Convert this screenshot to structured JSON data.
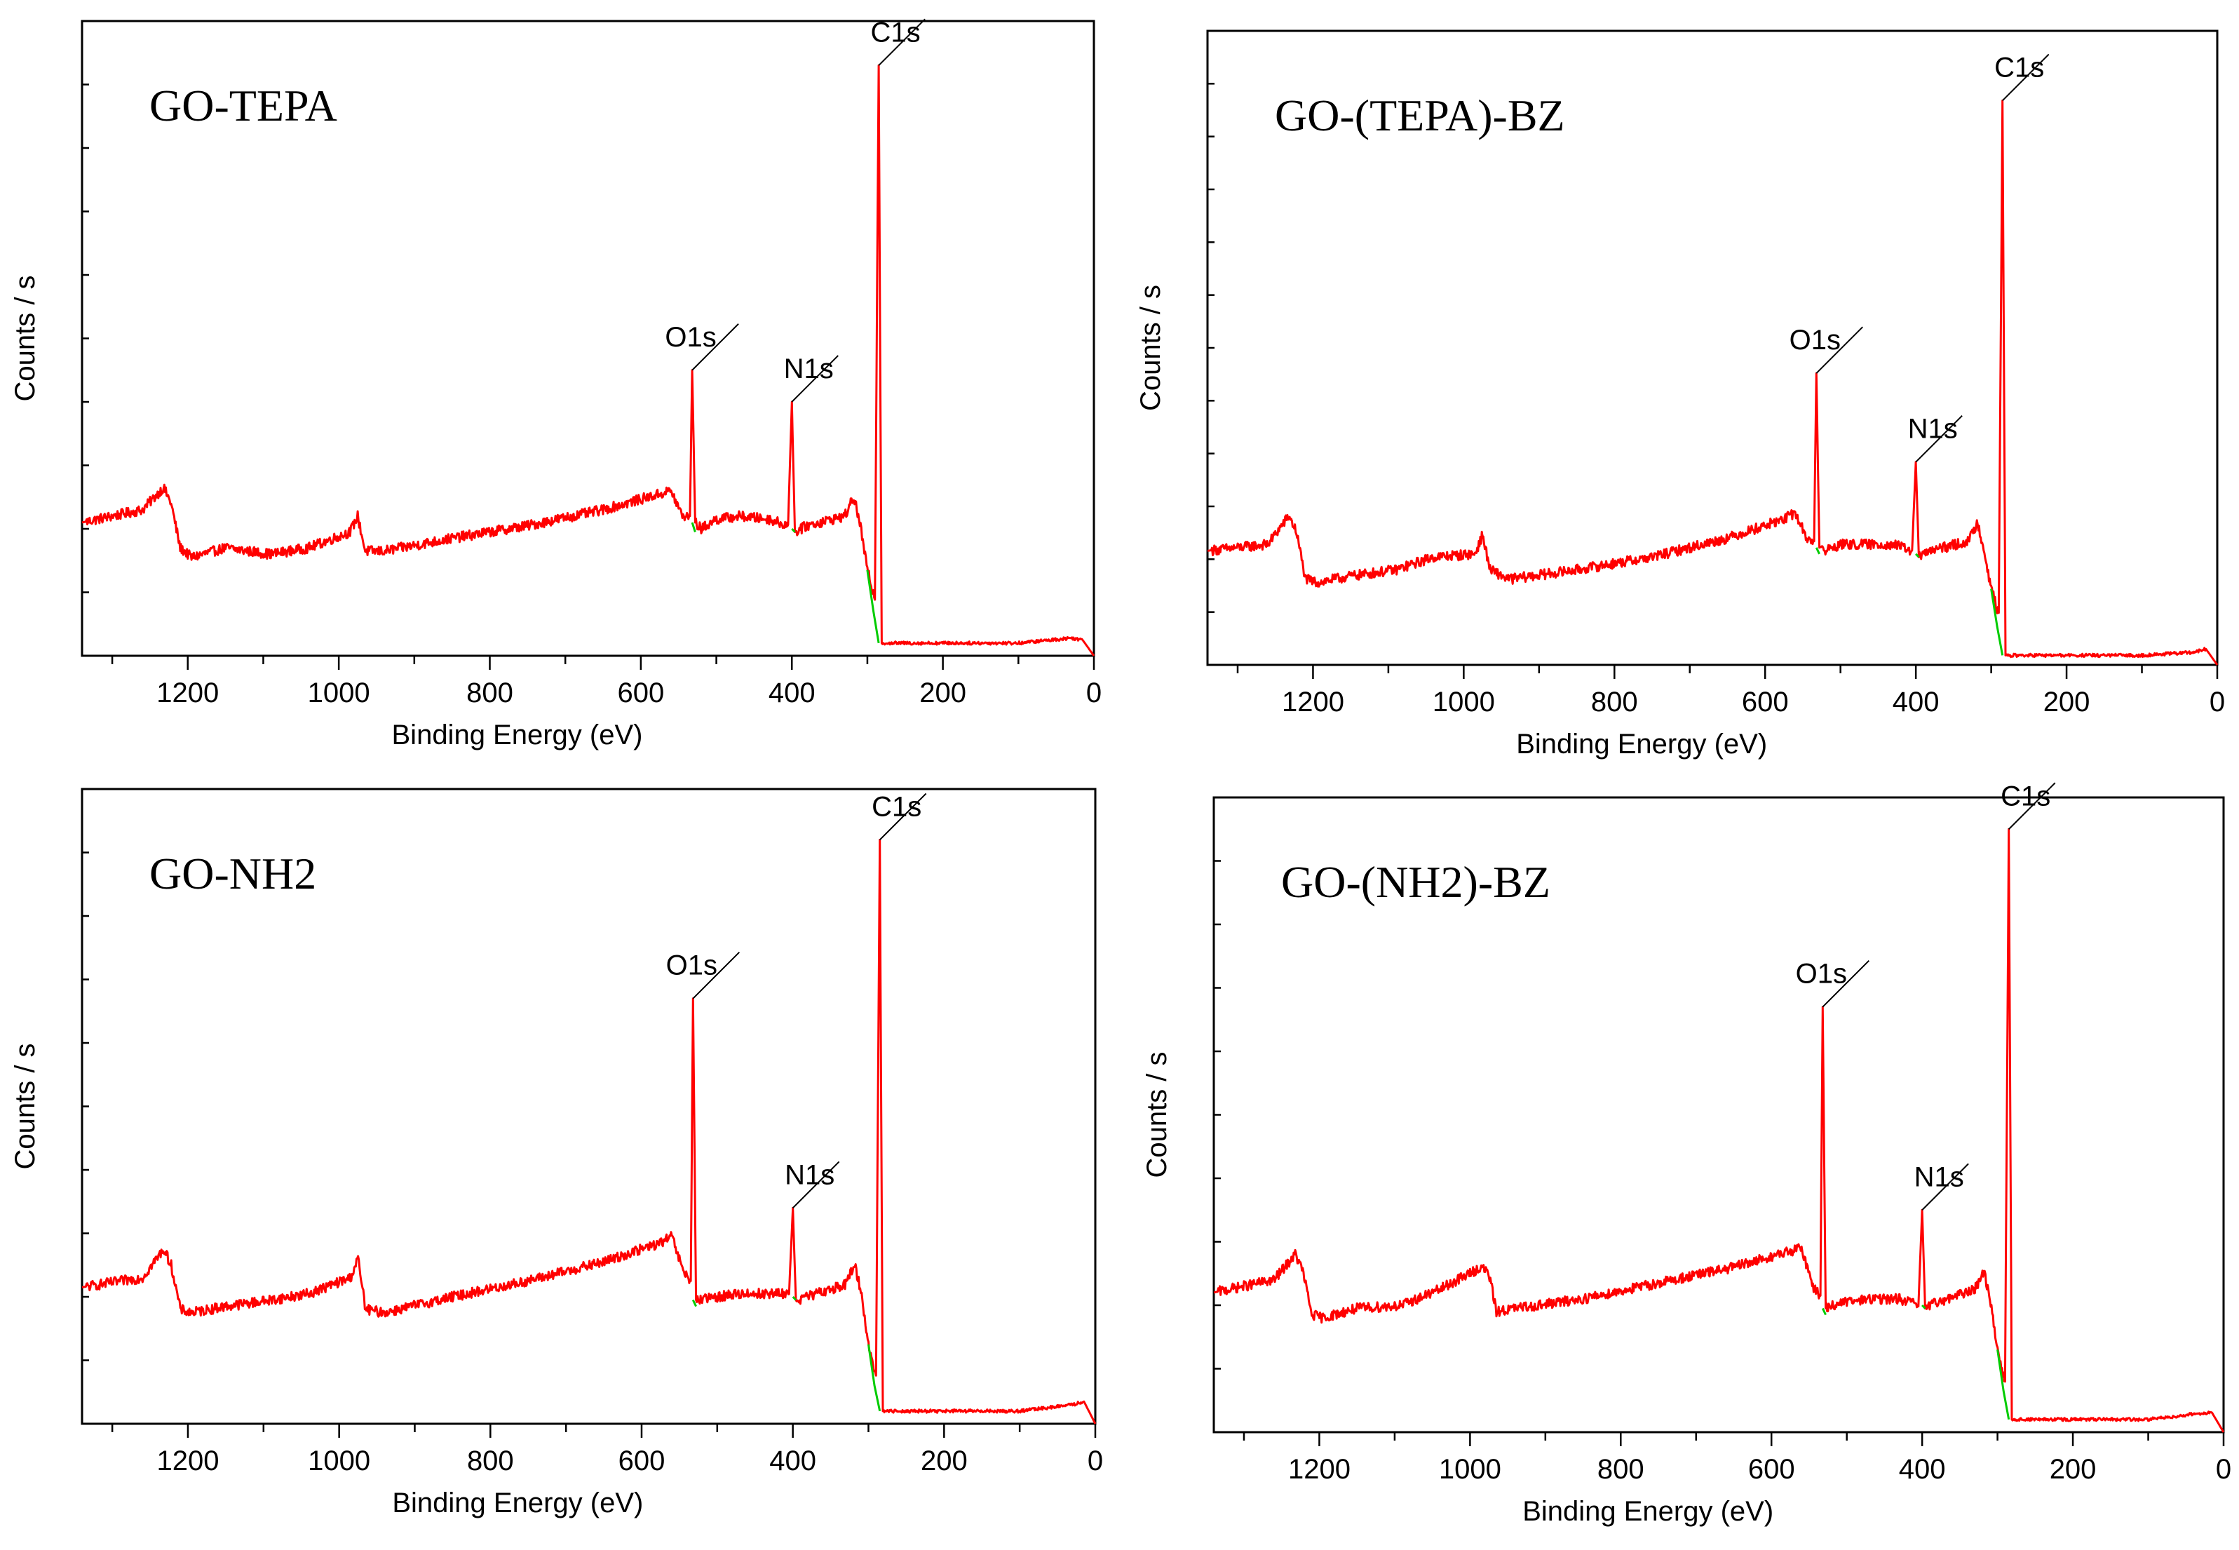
{
  "chart_data": [
    {
      "type": "line",
      "title": "GO-TEPA",
      "xlabel": "Binding Energy (eV)",
      "ylabel": "Counts / s",
      "xlim": [
        1340,
        0
      ],
      "ylim": [
        0,
        100
      ],
      "xticks": [
        1200,
        1000,
        800,
        600,
        400,
        200,
        0
      ],
      "y_minor_ticks": 10,
      "series_color": "#ff0000",
      "background_color": "#00cc00",
      "peaks": [
        {
          "label": "O1s",
          "x": 532,
          "y": 45
        },
        {
          "label": "N1s",
          "x": 400,
          "y": 40
        },
        {
          "label": "C1s",
          "x": 285,
          "y": 93
        }
      ],
      "profile": [
        [
          1340,
          21
        ],
        [
          1260,
          23
        ],
        [
          1232,
          26.5
        ],
        [
          1222,
          24
        ],
        [
          1210,
          17
        ],
        [
          1195,
          15.5
        ],
        [
          1150,
          17
        ],
        [
          1090,
          16
        ],
        [
          1040,
          17
        ],
        [
          985,
          19.5
        ],
        [
          975,
          22
        ],
        [
          965,
          16.5
        ],
        [
          940,
          16.5
        ],
        [
          850,
          18.5
        ],
        [
          750,
          20.5
        ],
        [
          650,
          23
        ],
        [
          575,
          25.5
        ],
        [
          560,
          26
        ],
        [
          545,
          22
        ],
        [
          535,
          22
        ],
        [
          532,
          45
        ],
        [
          528,
          21
        ],
        [
          520,
          20
        ],
        [
          500,
          21.5
        ],
        [
          470,
          22
        ],
        [
          430,
          21.5
        ],
        [
          405,
          20.5
        ],
        [
          400,
          40
        ],
        [
          396,
          19.5
        ],
        [
          380,
          20.5
        ],
        [
          330,
          22
        ],
        [
          318,
          25
        ],
        [
          310,
          21
        ],
        [
          300,
          13.5
        ],
        [
          290,
          9
        ],
        [
          285,
          93
        ],
        [
          281,
          2
        ],
        [
          250,
          2
        ],
        [
          100,
          2
        ],
        [
          30,
          2.8
        ],
        [
          15,
          2.5
        ],
        [
          0,
          0
        ]
      ],
      "background_segments": [
        [
          [
            532,
            21
          ],
          [
            528,
            19.5
          ]
        ],
        [
          [
            400,
            20
          ],
          [
            396,
            19.5
          ]
        ],
        [
          [
            300,
            13.5
          ],
          [
            292,
            7
          ],
          [
            285,
            2
          ]
        ]
      ]
    },
    {
      "type": "line",
      "title": "GO-(TEPA)-BZ",
      "xlabel": "Binding Energy (eV)",
      "ylabel": "Counts / s",
      "xlim": [
        1340,
        0
      ],
      "ylim": [
        0,
        100
      ],
      "xticks": [
        1200,
        1000,
        800,
        600,
        400,
        200,
        0
      ],
      "y_minor_ticks": 12,
      "series_color": "#ff0000",
      "background_color": "#00cc00",
      "peaks": [
        {
          "label": "O1s",
          "x": 532,
          "y": 46
        },
        {
          "label": "N1s",
          "x": 400,
          "y": 32
        },
        {
          "label": "C1s",
          "x": 285,
          "y": 89
        }
      ],
      "profile": [
        [
          1340,
          18
        ],
        [
          1260,
          19
        ],
        [
          1232,
          23.5
        ],
        [
          1222,
          21
        ],
        [
          1210,
          13.5
        ],
        [
          1195,
          13
        ],
        [
          1150,
          14
        ],
        [
          1090,
          15
        ],
        [
          1040,
          17
        ],
        [
          985,
          17.5
        ],
        [
          975,
          20.5
        ],
        [
          965,
          15
        ],
        [
          940,
          13.5
        ],
        [
          850,
          15
        ],
        [
          750,
          17
        ],
        [
          650,
          20
        ],
        [
          575,
          23
        ],
        [
          560,
          24
        ],
        [
          545,
          20
        ],
        [
          535,
          19.5
        ],
        [
          532,
          46
        ],
        [
          528,
          18.5
        ],
        [
          520,
          18
        ],
        [
          500,
          19
        ],
        [
          470,
          19
        ],
        [
          430,
          19
        ],
        [
          405,
          18
        ],
        [
          400,
          32
        ],
        [
          396,
          17
        ],
        [
          380,
          18
        ],
        [
          330,
          19.5
        ],
        [
          318,
          22.5
        ],
        [
          310,
          18.5
        ],
        [
          300,
          12
        ],
        [
          290,
          8
        ],
        [
          285,
          89
        ],
        [
          281,
          1.5
        ],
        [
          250,
          1.5
        ],
        [
          100,
          1.5
        ],
        [
          30,
          2
        ],
        [
          15,
          2.5
        ],
        [
          0,
          0
        ]
      ],
      "background_segments": [
        [
          [
            532,
            18.5
          ],
          [
            528,
            17.5
          ]
        ],
        [
          [
            400,
            17.5
          ],
          [
            396,
            17
          ]
        ],
        [
          [
            300,
            12
          ],
          [
            292,
            6
          ],
          [
            285,
            1.5
          ]
        ]
      ]
    },
    {
      "type": "line",
      "title": "GO-NH2",
      "xlabel": "Binding Energy (eV)",
      "ylabel": "Counts / s",
      "xlim": [
        1340,
        0
      ],
      "ylim": [
        0,
        100
      ],
      "xticks": [
        1200,
        1000,
        800,
        600,
        400,
        200,
        0
      ],
      "y_minor_ticks": 10,
      "series_color": "#ff0000",
      "background_color": "#00cc00",
      "peaks": [
        {
          "label": "O1s",
          "x": 532,
          "y": 67
        },
        {
          "label": "N1s",
          "x": 400,
          "y": 34
        },
        {
          "label": "C1s",
          "x": 285,
          "y": 92
        }
      ],
      "profile": [
        [
          1340,
          21.5
        ],
        [
          1260,
          23
        ],
        [
          1232,
          27.5
        ],
        [
          1222,
          25
        ],
        [
          1210,
          18
        ],
        [
          1195,
          17.5
        ],
        [
          1150,
          18.5
        ],
        [
          1090,
          19.5
        ],
        [
          1040,
          20.5
        ],
        [
          985,
          23
        ],
        [
          975,
          26
        ],
        [
          965,
          18
        ],
        [
          940,
          17.5
        ],
        [
          850,
          20
        ],
        [
          750,
          22.5
        ],
        [
          650,
          25.5
        ],
        [
          575,
          28.5
        ],
        [
          560,
          29.5
        ],
        [
          545,
          24
        ],
        [
          535,
          22.5
        ],
        [
          532,
          67
        ],
        [
          528,
          19.5
        ],
        [
          520,
          19.5
        ],
        [
          500,
          20
        ],
        [
          470,
          20.5
        ],
        [
          430,
          20.5
        ],
        [
          405,
          20.5
        ],
        [
          400,
          34
        ],
        [
          396,
          19.5
        ],
        [
          380,
          20
        ],
        [
          330,
          22
        ],
        [
          318,
          25
        ],
        [
          310,
          21
        ],
        [
          300,
          12.5
        ],
        [
          290,
          7.5
        ],
        [
          285,
          92
        ],
        [
          281,
          2
        ],
        [
          250,
          2
        ],
        [
          100,
          2
        ],
        [
          30,
          3
        ],
        [
          15,
          3.5
        ],
        [
          0,
          0
        ]
      ],
      "background_segments": [
        [
          [
            532,
            19.5
          ],
          [
            528,
            18.5
          ]
        ],
        [
          [
            400,
            20
          ],
          [
            396,
            19.5
          ]
        ],
        [
          [
            300,
            12.5
          ],
          [
            292,
            6
          ],
          [
            285,
            2
          ]
        ]
      ]
    },
    {
      "type": "line",
      "title": "GO-(NH2)-BZ",
      "xlabel": "Binding Energy (eV)",
      "ylabel": "Counts / s",
      "xlim": [
        1340,
        0
      ],
      "ylim": [
        0,
        100
      ],
      "xticks": [
        1200,
        1000,
        800,
        600,
        400,
        200,
        0
      ],
      "y_minor_ticks": 10,
      "series_color": "#ff0000",
      "background_color": "#00cc00",
      "peaks": [
        {
          "label": "O1s",
          "x": 532,
          "y": 67
        },
        {
          "label": "N1s",
          "x": 400,
          "y": 35
        },
        {
          "label": "C1s",
          "x": 285,
          "y": 95
        }
      ],
      "profile": [
        [
          1340,
          22
        ],
        [
          1260,
          24
        ],
        [
          1232,
          28
        ],
        [
          1222,
          25.5
        ],
        [
          1210,
          18.5
        ],
        [
          1195,
          18
        ],
        [
          1150,
          19.5
        ],
        [
          1090,
          20
        ],
        [
          1040,
          22.5
        ],
        [
          985,
          26
        ],
        [
          975,
          25
        ],
        [
          965,
          19
        ],
        [
          940,
          19.5
        ],
        [
          850,
          21
        ],
        [
          750,
          23.5
        ],
        [
          650,
          26
        ],
        [
          575,
          28.5
        ],
        [
          560,
          29
        ],
        [
          545,
          23
        ],
        [
          535,
          21.5
        ],
        [
          532,
          67
        ],
        [
          528,
          19.5
        ],
        [
          520,
          20
        ],
        [
          500,
          20.5
        ],
        [
          470,
          21
        ],
        [
          430,
          21
        ],
        [
          405,
          20
        ],
        [
          400,
          35
        ],
        [
          396,
          19.5
        ],
        [
          380,
          20.5
        ],
        [
          330,
          22.5
        ],
        [
          318,
          25.5
        ],
        [
          310,
          21
        ],
        [
          300,
          13
        ],
        [
          290,
          8
        ],
        [
          285,
          95
        ],
        [
          281,
          2
        ],
        [
          250,
          2
        ],
        [
          100,
          2
        ],
        [
          30,
          3
        ],
        [
          15,
          3
        ],
        [
          0,
          0
        ]
      ],
      "background_segments": [
        [
          [
            532,
            19.5
          ],
          [
            528,
            18.5
          ]
        ],
        [
          [
            400,
            20
          ],
          [
            396,
            19.5
          ]
        ],
        [
          [
            300,
            13
          ],
          [
            292,
            6.5
          ],
          [
            285,
            2
          ]
        ]
      ]
    }
  ]
}
